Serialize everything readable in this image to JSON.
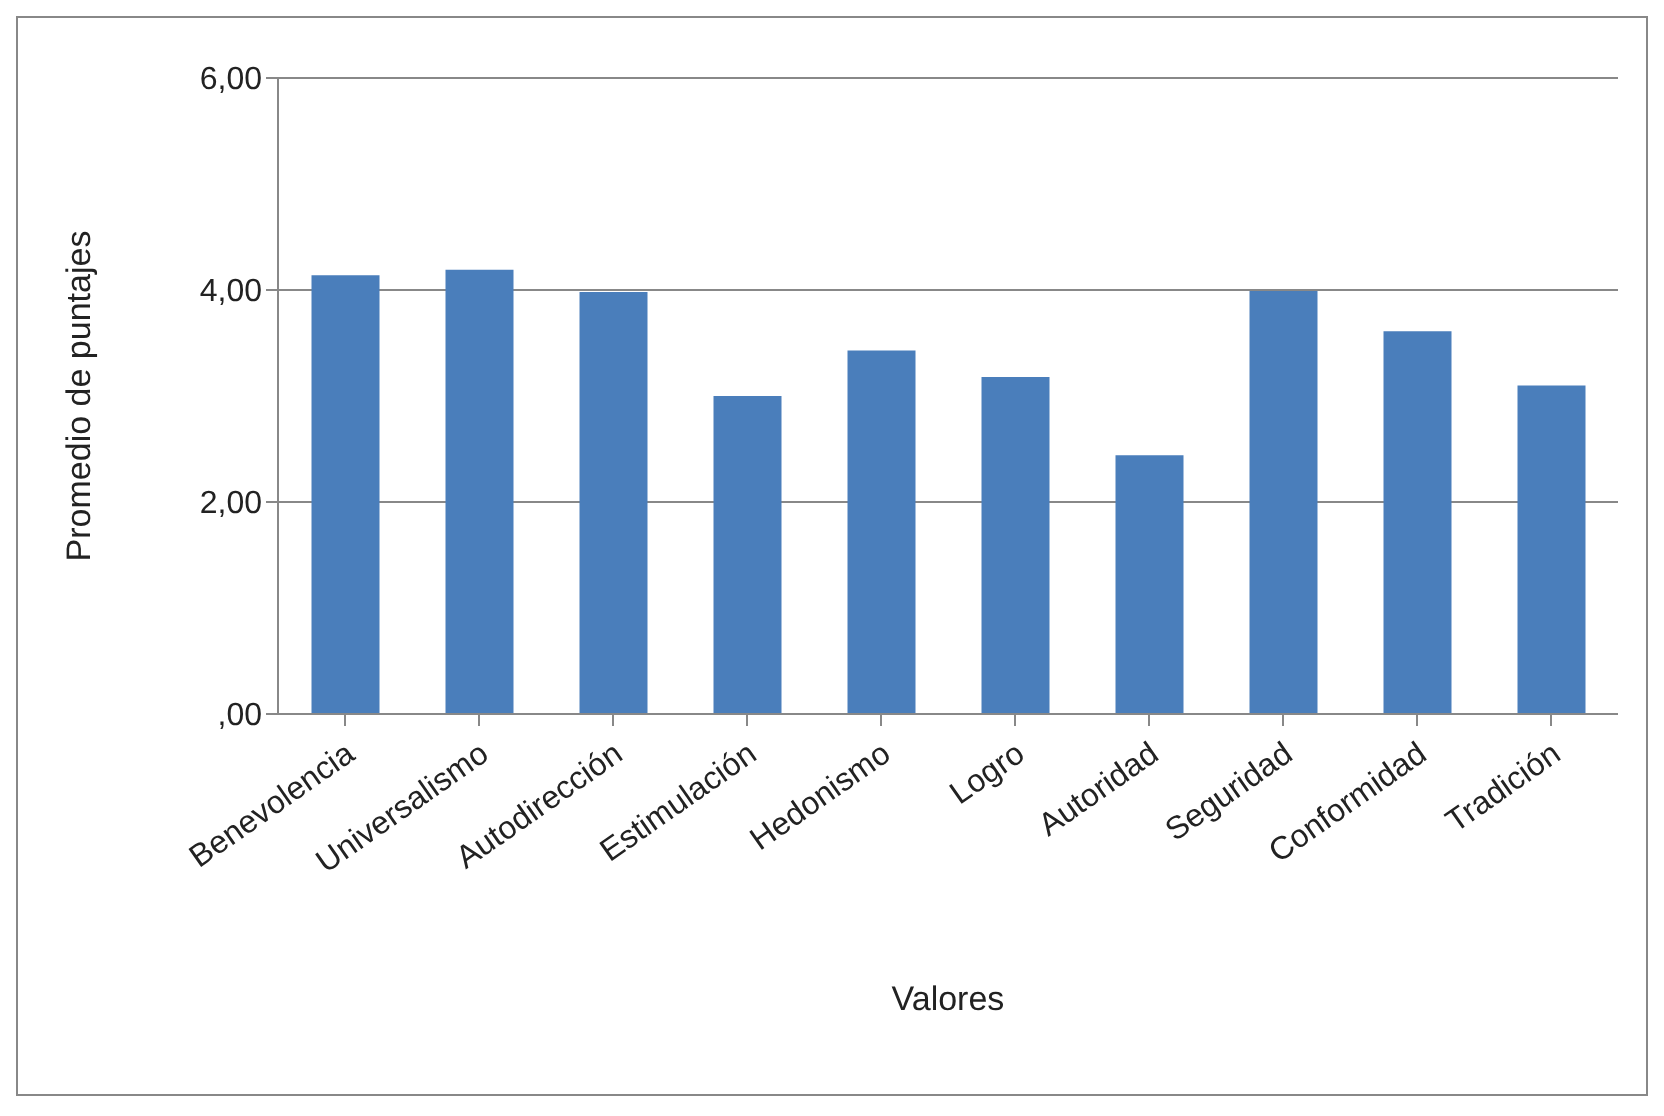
{
  "chart_data": {
    "type": "bar",
    "xlabel": "Valores",
    "ylabel": "Promedio de puntajes",
    "categories": [
      "Benevolencia",
      "Universalismo",
      "Autodirección",
      "Estimulación",
      "Hedonismo",
      "Logro",
      "Autoridad",
      "Seguridad",
      "Conformidad",
      "Tradición"
    ],
    "values": [
      4.14,
      4.19,
      3.98,
      3.0,
      3.43,
      3.18,
      2.44,
      3.99,
      3.61,
      3.1
    ],
    "color": "#4a7ebb",
    "ylim": [
      0,
      6
    ],
    "yticks": [
      {
        "value": 0,
        "label": ",00"
      },
      {
        "value": 2,
        "label": "2,00"
      },
      {
        "value": 4,
        "label": "4,00"
      },
      {
        "value": 6,
        "label": "6,00"
      }
    ],
    "grid": "y",
    "legend": false
  }
}
